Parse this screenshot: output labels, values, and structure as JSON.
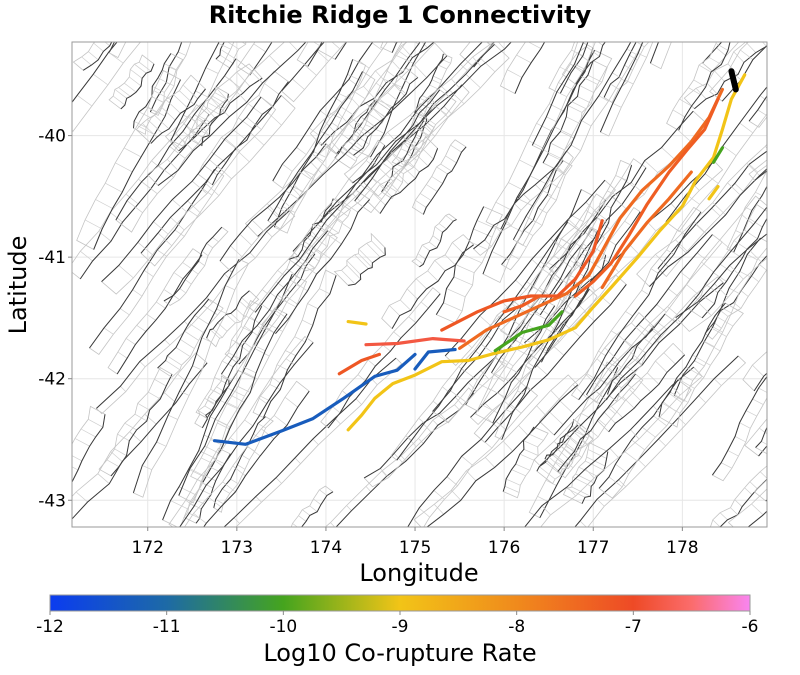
{
  "chart_data": {
    "type": "map",
    "title": "Ritchie Ridge 1 Connectivity",
    "xlabel": "Longitude",
    "ylabel": "Latitude",
    "xlim": [
      171.15,
      178.95
    ],
    "ylim": [
      -43.22,
      -39.23
    ],
    "xticks": [
      172,
      173,
      174,
      175,
      176,
      177,
      178
    ],
    "yticks": [
      -40,
      -41,
      -42,
      -43
    ],
    "grid": true,
    "colorbar": {
      "label": "Log10 Co-rupture Rate",
      "min": -12,
      "max": -6,
      "ticks": [
        -12,
        -11,
        -10,
        -9,
        -8,
        -7,
        -6
      ],
      "stops": [
        {
          "value": -12,
          "color": "#0b3cf0"
        },
        {
          "value": -11,
          "color": "#1d6aa6"
        },
        {
          "value": -10,
          "color": "#45a41e"
        },
        {
          "value": -9,
          "color": "#f2c417"
        },
        {
          "value": -8,
          "color": "#f08a1c"
        },
        {
          "value": -7,
          "color": "#ee4a26"
        },
        {
          "value": -6.5,
          "color": "#fb6c6c"
        },
        {
          "value": -6,
          "color": "#f985f0"
        }
      ]
    },
    "source_section": {
      "name": "Ritchie Ridge 1",
      "color": "#000000",
      "points": [
        [
          178.55,
          -39.47
        ],
        [
          178.6,
          -39.62
        ]
      ]
    },
    "sections": [
      {
        "rate": -11.3,
        "points": [
          [
            172.75,
            -42.51
          ],
          [
            173.1,
            -42.54
          ],
          [
            173.5,
            -42.43
          ],
          [
            173.85,
            -42.33
          ],
          [
            174.2,
            -42.16
          ],
          [
            174.55,
            -41.98
          ],
          [
            174.8,
            -41.93
          ],
          [
            175.0,
            -41.8
          ]
        ]
      },
      {
        "rate": -11.3,
        "points": [
          [
            175.0,
            -41.92
          ],
          [
            175.15,
            -41.78
          ],
          [
            175.45,
            -41.76
          ]
        ]
      },
      {
        "rate": -9.0,
        "points": [
          [
            174.25,
            -42.42
          ],
          [
            174.4,
            -42.3
          ],
          [
            174.55,
            -42.16
          ],
          [
            174.75,
            -42.04
          ],
          [
            175.0,
            -41.97
          ],
          [
            175.3,
            -41.86
          ],
          [
            175.6,
            -41.85
          ],
          [
            175.9,
            -41.79
          ],
          [
            176.2,
            -41.74
          ],
          [
            176.5,
            -41.68
          ],
          [
            176.8,
            -41.58
          ],
          [
            177.0,
            -41.41
          ],
          [
            177.2,
            -41.25
          ],
          [
            177.5,
            -41.0
          ],
          [
            177.75,
            -40.78
          ],
          [
            178.0,
            -40.58
          ],
          [
            178.15,
            -40.37
          ],
          [
            178.35,
            -40.18
          ],
          [
            178.45,
            -39.95
          ],
          [
            178.55,
            -39.7
          ],
          [
            178.7,
            -39.5
          ]
        ]
      },
      {
        "rate": -9.0,
        "points": [
          [
            178.3,
            -40.52
          ],
          [
            178.4,
            -40.42
          ]
        ]
      },
      {
        "rate": -9.0,
        "points": [
          [
            174.25,
            -41.53
          ],
          [
            174.45,
            -41.55
          ]
        ]
      },
      {
        "rate": -10.0,
        "points": [
          [
            175.9,
            -41.77
          ],
          [
            176.2,
            -41.62
          ],
          [
            176.5,
            -41.56
          ],
          [
            176.65,
            -41.45
          ]
        ]
      },
      {
        "rate": -10.0,
        "points": [
          [
            178.35,
            -40.22
          ],
          [
            178.45,
            -40.1
          ]
        ]
      },
      {
        "rate": -7.5,
        "points": [
          [
            175.5,
            -41.75
          ],
          [
            175.8,
            -41.6
          ],
          [
            176.1,
            -41.5
          ],
          [
            176.4,
            -41.4
          ],
          [
            176.7,
            -41.3
          ],
          [
            176.95,
            -41.15
          ],
          [
            177.1,
            -40.95
          ],
          [
            177.3,
            -40.68
          ],
          [
            177.55,
            -40.45
          ],
          [
            177.85,
            -40.25
          ],
          [
            178.1,
            -40.05
          ],
          [
            178.3,
            -39.85
          ],
          [
            178.45,
            -39.62
          ]
        ]
      },
      {
        "rate": -7.5,
        "points": [
          [
            177.1,
            -41.25
          ],
          [
            177.35,
            -40.95
          ],
          [
            177.6,
            -40.72
          ],
          [
            177.85,
            -40.52
          ],
          [
            178.1,
            -40.3
          ]
        ]
      },
      {
        "rate": -7.2,
        "points": [
          [
            174.15,
            -41.96
          ],
          [
            174.4,
            -41.85
          ],
          [
            174.6,
            -41.8
          ]
        ]
      },
      {
        "rate": -7.2,
        "points": [
          [
            175.3,
            -41.6
          ],
          [
            175.7,
            -41.45
          ],
          [
            176.0,
            -41.36
          ],
          [
            176.3,
            -41.32
          ],
          [
            176.6,
            -41.32
          ],
          [
            176.8,
            -41.18
          ],
          [
            177.0,
            -40.95
          ],
          [
            177.1,
            -40.7
          ]
        ]
      },
      {
        "rate": -6.8,
        "points": [
          [
            174.45,
            -41.72
          ],
          [
            174.8,
            -41.71
          ],
          [
            175.2,
            -41.67
          ],
          [
            175.55,
            -41.69
          ]
        ]
      },
      {
        "rate": -7.3,
        "points": [
          [
            176.8,
            -41.32
          ],
          [
            177.0,
            -41.2
          ],
          [
            177.2,
            -41.05
          ],
          [
            177.4,
            -40.82
          ],
          [
            177.6,
            -40.57
          ],
          [
            177.85,
            -40.3
          ],
          [
            178.05,
            -40.12
          ],
          [
            178.25,
            -39.95
          ],
          [
            178.4,
            -39.7
          ]
        ]
      },
      {
        "rate": -7.3,
        "points": [
          [
            176.0,
            -41.45
          ],
          [
            176.2,
            -41.4
          ],
          [
            176.4,
            -41.32
          ]
        ]
      }
    ]
  }
}
